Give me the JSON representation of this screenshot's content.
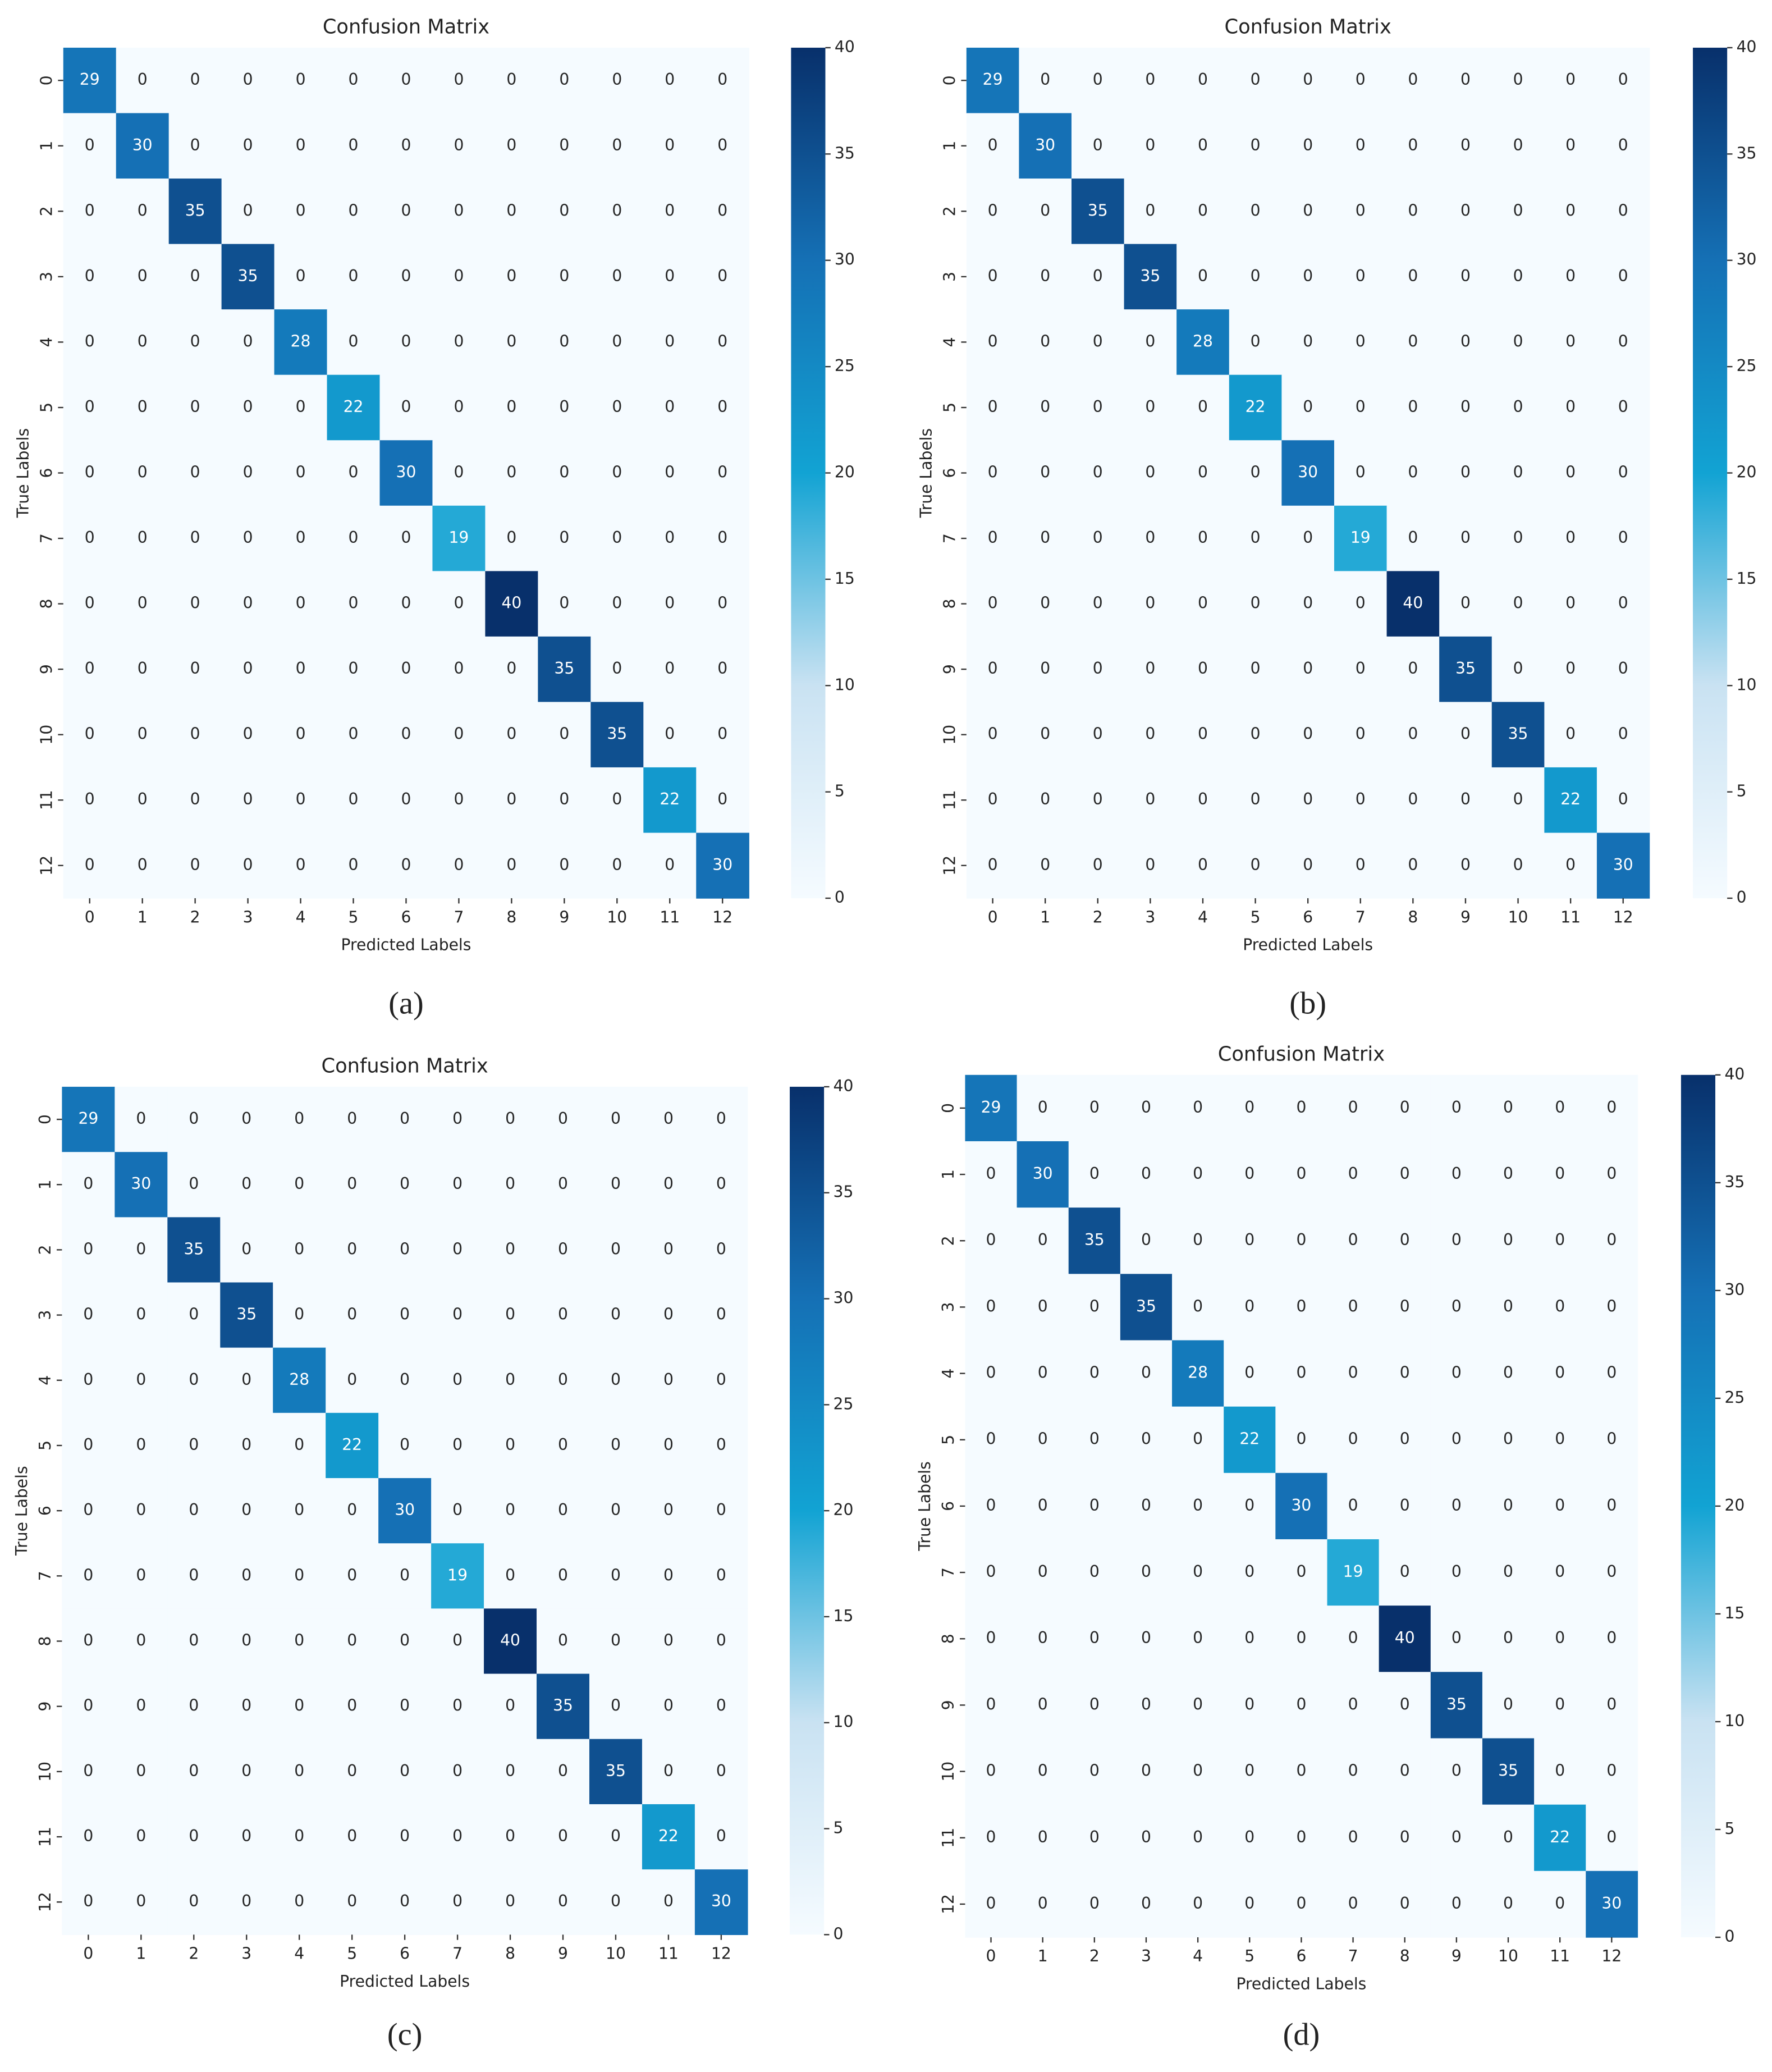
{
  "chart_data": [
    {
      "type": "heatmap",
      "title": "Confusion Matrix",
      "xlabel": "Predicted Labels",
      "ylabel": "True Labels",
      "caption": "(a)",
      "x_categories": [
        "0",
        "1",
        "2",
        "3",
        "4",
        "5",
        "6",
        "7",
        "8",
        "9",
        "10",
        "11",
        "12"
      ],
      "y_categories": [
        "0",
        "1",
        "2",
        "3",
        "4",
        "5",
        "6",
        "7",
        "8",
        "9",
        "10",
        "11",
        "12"
      ],
      "values": [
        [
          29,
          0,
          0,
          0,
          0,
          0,
          0,
          0,
          0,
          0,
          0,
          0,
          0
        ],
        [
          0,
          30,
          0,
          0,
          0,
          0,
          0,
          0,
          0,
          0,
          0,
          0,
          0
        ],
        [
          0,
          0,
          35,
          0,
          0,
          0,
          0,
          0,
          0,
          0,
          0,
          0,
          0
        ],
        [
          0,
          0,
          0,
          35,
          0,
          0,
          0,
          0,
          0,
          0,
          0,
          0,
          0
        ],
        [
          0,
          0,
          0,
          0,
          28,
          0,
          0,
          0,
          0,
          0,
          0,
          0,
          0
        ],
        [
          0,
          0,
          0,
          0,
          0,
          22,
          0,
          0,
          0,
          0,
          0,
          0,
          0
        ],
        [
          0,
          0,
          0,
          0,
          0,
          0,
          30,
          0,
          0,
          0,
          0,
          0,
          0
        ],
        [
          0,
          0,
          0,
          0,
          0,
          0,
          0,
          19,
          0,
          0,
          0,
          0,
          0
        ],
        [
          0,
          0,
          0,
          0,
          0,
          0,
          0,
          0,
          40,
          0,
          0,
          0,
          0
        ],
        [
          0,
          0,
          0,
          0,
          0,
          0,
          0,
          0,
          0,
          35,
          0,
          0,
          0
        ],
        [
          0,
          0,
          0,
          0,
          0,
          0,
          0,
          0,
          0,
          0,
          35,
          0,
          0
        ],
        [
          0,
          0,
          0,
          0,
          0,
          0,
          0,
          0,
          0,
          0,
          0,
          22,
          0
        ],
        [
          0,
          0,
          0,
          0,
          0,
          0,
          0,
          0,
          0,
          0,
          0,
          0,
          30
        ]
      ],
      "clim": [
        0,
        40
      ],
      "cticks": [
        0,
        5,
        10,
        15,
        20,
        25,
        30,
        35,
        40
      ]
    },
    {
      "type": "heatmap",
      "title": "Confusion Matrix",
      "xlabel": "Predicted Labels",
      "ylabel": "True Labels",
      "caption": "(b)",
      "x_categories": [
        "0",
        "1",
        "2",
        "3",
        "4",
        "5",
        "6",
        "7",
        "8",
        "9",
        "10",
        "11",
        "12"
      ],
      "y_categories": [
        "0",
        "1",
        "2",
        "3",
        "4",
        "5",
        "6",
        "7",
        "8",
        "9",
        "10",
        "11",
        "12"
      ],
      "values": [
        [
          29,
          0,
          0,
          0,
          0,
          0,
          0,
          0,
          0,
          0,
          0,
          0,
          0
        ],
        [
          0,
          30,
          0,
          0,
          0,
          0,
          0,
          0,
          0,
          0,
          0,
          0,
          0
        ],
        [
          0,
          0,
          35,
          0,
          0,
          0,
          0,
          0,
          0,
          0,
          0,
          0,
          0
        ],
        [
          0,
          0,
          0,
          35,
          0,
          0,
          0,
          0,
          0,
          0,
          0,
          0,
          0
        ],
        [
          0,
          0,
          0,
          0,
          28,
          0,
          0,
          0,
          0,
          0,
          0,
          0,
          0
        ],
        [
          0,
          0,
          0,
          0,
          0,
          22,
          0,
          0,
          0,
          0,
          0,
          0,
          0
        ],
        [
          0,
          0,
          0,
          0,
          0,
          0,
          30,
          0,
          0,
          0,
          0,
          0,
          0
        ],
        [
          0,
          0,
          0,
          0,
          0,
          0,
          0,
          19,
          0,
          0,
          0,
          0,
          0
        ],
        [
          0,
          0,
          0,
          0,
          0,
          0,
          0,
          0,
          40,
          0,
          0,
          0,
          0
        ],
        [
          0,
          0,
          0,
          0,
          0,
          0,
          0,
          0,
          0,
          35,
          0,
          0,
          0
        ],
        [
          0,
          0,
          0,
          0,
          0,
          0,
          0,
          0,
          0,
          0,
          35,
          0,
          0
        ],
        [
          0,
          0,
          0,
          0,
          0,
          0,
          0,
          0,
          0,
          0,
          0,
          22,
          0
        ],
        [
          0,
          0,
          0,
          0,
          0,
          0,
          0,
          0,
          0,
          0,
          0,
          0,
          30
        ]
      ],
      "clim": [
        0,
        40
      ],
      "cticks": [
        0,
        5,
        10,
        15,
        20,
        25,
        30,
        35,
        40
      ]
    },
    {
      "type": "heatmap",
      "title": "Confusion Matrix",
      "xlabel": "Predicted Labels",
      "ylabel": "True Labels",
      "caption": "(c)",
      "x_categories": [
        "0",
        "1",
        "2",
        "3",
        "4",
        "5",
        "6",
        "7",
        "8",
        "9",
        "10",
        "11",
        "12"
      ],
      "y_categories": [
        "0",
        "1",
        "2",
        "3",
        "4",
        "5",
        "6",
        "7",
        "8",
        "9",
        "10",
        "11",
        "12"
      ],
      "values": [
        [
          29,
          0,
          0,
          0,
          0,
          0,
          0,
          0,
          0,
          0,
          0,
          0,
          0
        ],
        [
          0,
          30,
          0,
          0,
          0,
          0,
          0,
          0,
          0,
          0,
          0,
          0,
          0
        ],
        [
          0,
          0,
          35,
          0,
          0,
          0,
          0,
          0,
          0,
          0,
          0,
          0,
          0
        ],
        [
          0,
          0,
          0,
          35,
          0,
          0,
          0,
          0,
          0,
          0,
          0,
          0,
          0
        ],
        [
          0,
          0,
          0,
          0,
          28,
          0,
          0,
          0,
          0,
          0,
          0,
          0,
          0
        ],
        [
          0,
          0,
          0,
          0,
          0,
          22,
          0,
          0,
          0,
          0,
          0,
          0,
          0
        ],
        [
          0,
          0,
          0,
          0,
          0,
          0,
          30,
          0,
          0,
          0,
          0,
          0,
          0
        ],
        [
          0,
          0,
          0,
          0,
          0,
          0,
          0,
          19,
          0,
          0,
          0,
          0,
          0
        ],
        [
          0,
          0,
          0,
          0,
          0,
          0,
          0,
          0,
          40,
          0,
          0,
          0,
          0
        ],
        [
          0,
          0,
          0,
          0,
          0,
          0,
          0,
          0,
          0,
          35,
          0,
          0,
          0
        ],
        [
          0,
          0,
          0,
          0,
          0,
          0,
          0,
          0,
          0,
          0,
          35,
          0,
          0
        ],
        [
          0,
          0,
          0,
          0,
          0,
          0,
          0,
          0,
          0,
          0,
          0,
          22,
          0
        ],
        [
          0,
          0,
          0,
          0,
          0,
          0,
          0,
          0,
          0,
          0,
          0,
          0,
          30
        ]
      ],
      "clim": [
        0,
        40
      ],
      "cticks": [
        0,
        5,
        10,
        15,
        20,
        25,
        30,
        35,
        40
      ]
    },
    {
      "type": "heatmap",
      "title": "Confusion Matrix",
      "xlabel": "Predicted Labels",
      "ylabel": "True Labels",
      "caption": "(d)",
      "x_categories": [
        "0",
        "1",
        "2",
        "3",
        "4",
        "5",
        "6",
        "7",
        "8",
        "9",
        "10",
        "11",
        "12"
      ],
      "y_categories": [
        "0",
        "1",
        "2",
        "3",
        "4",
        "5",
        "6",
        "7",
        "8",
        "9",
        "10",
        "11",
        "12"
      ],
      "values": [
        [
          29,
          0,
          0,
          0,
          0,
          0,
          0,
          0,
          0,
          0,
          0,
          0,
          0
        ],
        [
          0,
          30,
          0,
          0,
          0,
          0,
          0,
          0,
          0,
          0,
          0,
          0,
          0
        ],
        [
          0,
          0,
          35,
          0,
          0,
          0,
          0,
          0,
          0,
          0,
          0,
          0,
          0
        ],
        [
          0,
          0,
          0,
          35,
          0,
          0,
          0,
          0,
          0,
          0,
          0,
          0,
          0
        ],
        [
          0,
          0,
          0,
          0,
          28,
          0,
          0,
          0,
          0,
          0,
          0,
          0,
          0
        ],
        [
          0,
          0,
          0,
          0,
          0,
          22,
          0,
          0,
          0,
          0,
          0,
          0,
          0
        ],
        [
          0,
          0,
          0,
          0,
          0,
          0,
          30,
          0,
          0,
          0,
          0,
          0,
          0
        ],
        [
          0,
          0,
          0,
          0,
          0,
          0,
          0,
          19,
          0,
          0,
          0,
          0,
          0
        ],
        [
          0,
          0,
          0,
          0,
          0,
          0,
          0,
          0,
          40,
          0,
          0,
          0,
          0
        ],
        [
          0,
          0,
          0,
          0,
          0,
          0,
          0,
          0,
          0,
          35,
          0,
          0,
          0
        ],
        [
          0,
          0,
          0,
          0,
          0,
          0,
          0,
          0,
          0,
          0,
          35,
          0,
          0
        ],
        [
          0,
          0,
          0,
          0,
          0,
          0,
          0,
          0,
          0,
          0,
          0,
          22,
          0
        ],
        [
          0,
          0,
          0,
          0,
          0,
          0,
          0,
          0,
          0,
          0,
          0,
          0,
          30
        ]
      ],
      "clim": [
        0,
        40
      ],
      "cticks": [
        0,
        5,
        10,
        15,
        20,
        25,
        30,
        35,
        40
      ]
    }
  ]
}
